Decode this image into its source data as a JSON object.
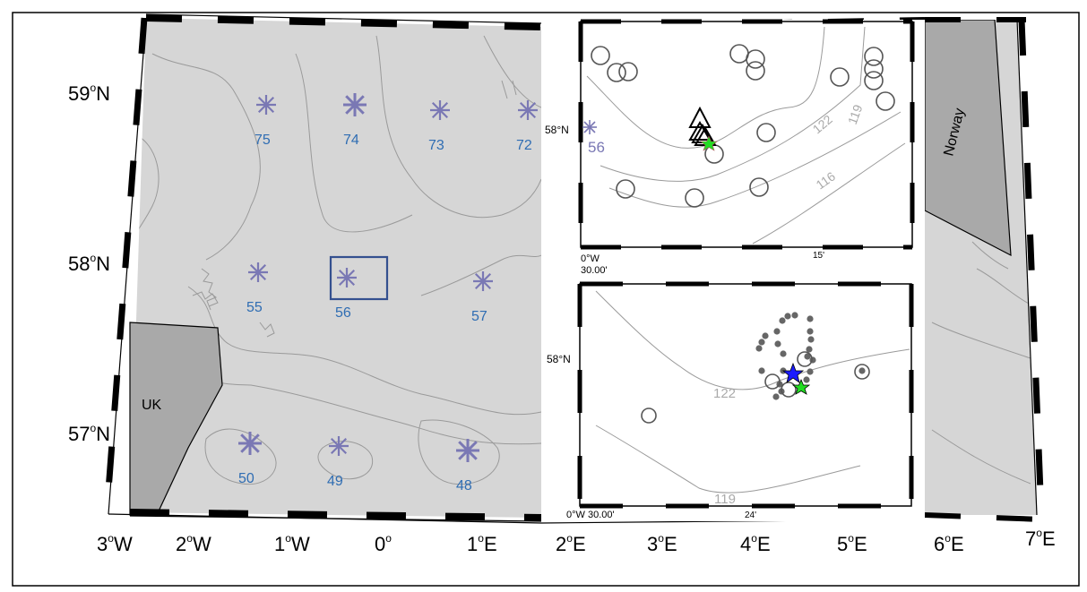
{
  "map": {
    "lon_labels": [
      {
        "deg": "3",
        "hem": "W"
      },
      {
        "deg": "2",
        "hem": "W"
      },
      {
        "deg": "1",
        "hem": "W"
      },
      {
        "deg": "0",
        "hem": ""
      },
      {
        "deg": "1",
        "hem": "E"
      },
      {
        "deg": "2",
        "hem": "E"
      },
      {
        "deg": "3",
        "hem": "E"
      },
      {
        "deg": "4",
        "hem": "E"
      },
      {
        "deg": "5",
        "hem": "E"
      },
      {
        "deg": "6",
        "hem": "E"
      },
      {
        "deg": "7",
        "hem": "E"
      }
    ],
    "lat_labels": [
      {
        "deg": "59",
        "hem": "N"
      },
      {
        "deg": "58",
        "hem": "N"
      },
      {
        "deg": "57",
        "hem": "N"
      }
    ],
    "land_labels": [
      "UK",
      "Norway"
    ],
    "stations": [
      "75",
      "74",
      "73",
      "72",
      "55",
      "56",
      "57",
      "50",
      "49",
      "48"
    ],
    "colors": {
      "sea": "#d6d6d6",
      "land": "#a9a9a9",
      "station_marker": "#7a78b4",
      "station_label": "#2f6db3",
      "highlight_box": "#34508f",
      "contour": "#9a9a9a"
    }
  },
  "inset_top": {
    "lat_label": "58°N",
    "lon_label": "0°W",
    "lon_label2": "30.00'",
    "tick_label": "15'",
    "station_label": "56",
    "contour_labels": [
      "122",
      "119",
      "116"
    ]
  },
  "inset_bottom": {
    "lat_label": "58°N",
    "lon_label": "0°W 30.00'",
    "tick_label": "24'",
    "contour_labels": [
      "122",
      "119"
    ]
  }
}
